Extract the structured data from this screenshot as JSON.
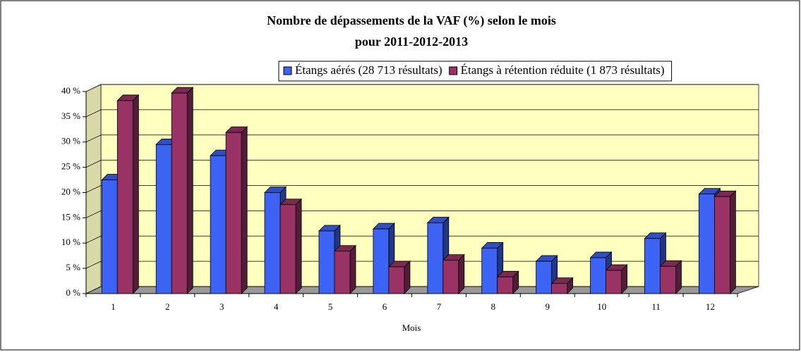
{
  "chart_data": {
    "type": "bar3d",
    "title": [
      "Nombre de dépassements de la VAF (%) selon le mois",
      "pour 2011-2012-2013"
    ],
    "x_label": "Mois",
    "categories": [
      "1",
      "2",
      "3",
      "4",
      "5",
      "6",
      "7",
      "8",
      "9",
      "10",
      "11",
      "12"
    ],
    "series": [
      {
        "name": "Étangs aérés (28 713 résultats)",
        "color": "#3d63f5",
        "values": [
          22.5,
          29.5,
          27.3,
          20,
          12.4,
          12.8,
          14,
          9,
          6.4,
          7.1,
          10.9,
          19.7
        ]
      },
      {
        "name": "Étangs à rétention réduite (1 873 résultats)",
        "color": "#993366",
        "values": [
          38.2,
          39.7,
          31.9,
          17.6,
          8.4,
          5.3,
          6.6,
          3.3,
          2,
          4.6,
          5.4,
          19.2
        ]
      }
    ],
    "ylim": [
      0,
      40
    ],
    "yticks": [
      {
        "value": 0,
        "label": "0 %"
      },
      {
        "value": 5,
        "label": "5 %"
      },
      {
        "value": 10,
        "label": "10 %"
      },
      {
        "value": 15,
        "label": "15 %"
      },
      {
        "value": 20,
        "label": "20 %"
      },
      {
        "value": 25,
        "label": "25 %"
      },
      {
        "value": 30,
        "label": "30 %"
      },
      {
        "value": 35,
        "label": "35 %"
      },
      {
        "value": 40,
        "label": "40 %"
      }
    ],
    "grid": true,
    "wall_color": "#ffffc0",
    "floor_color": "#999999"
  }
}
